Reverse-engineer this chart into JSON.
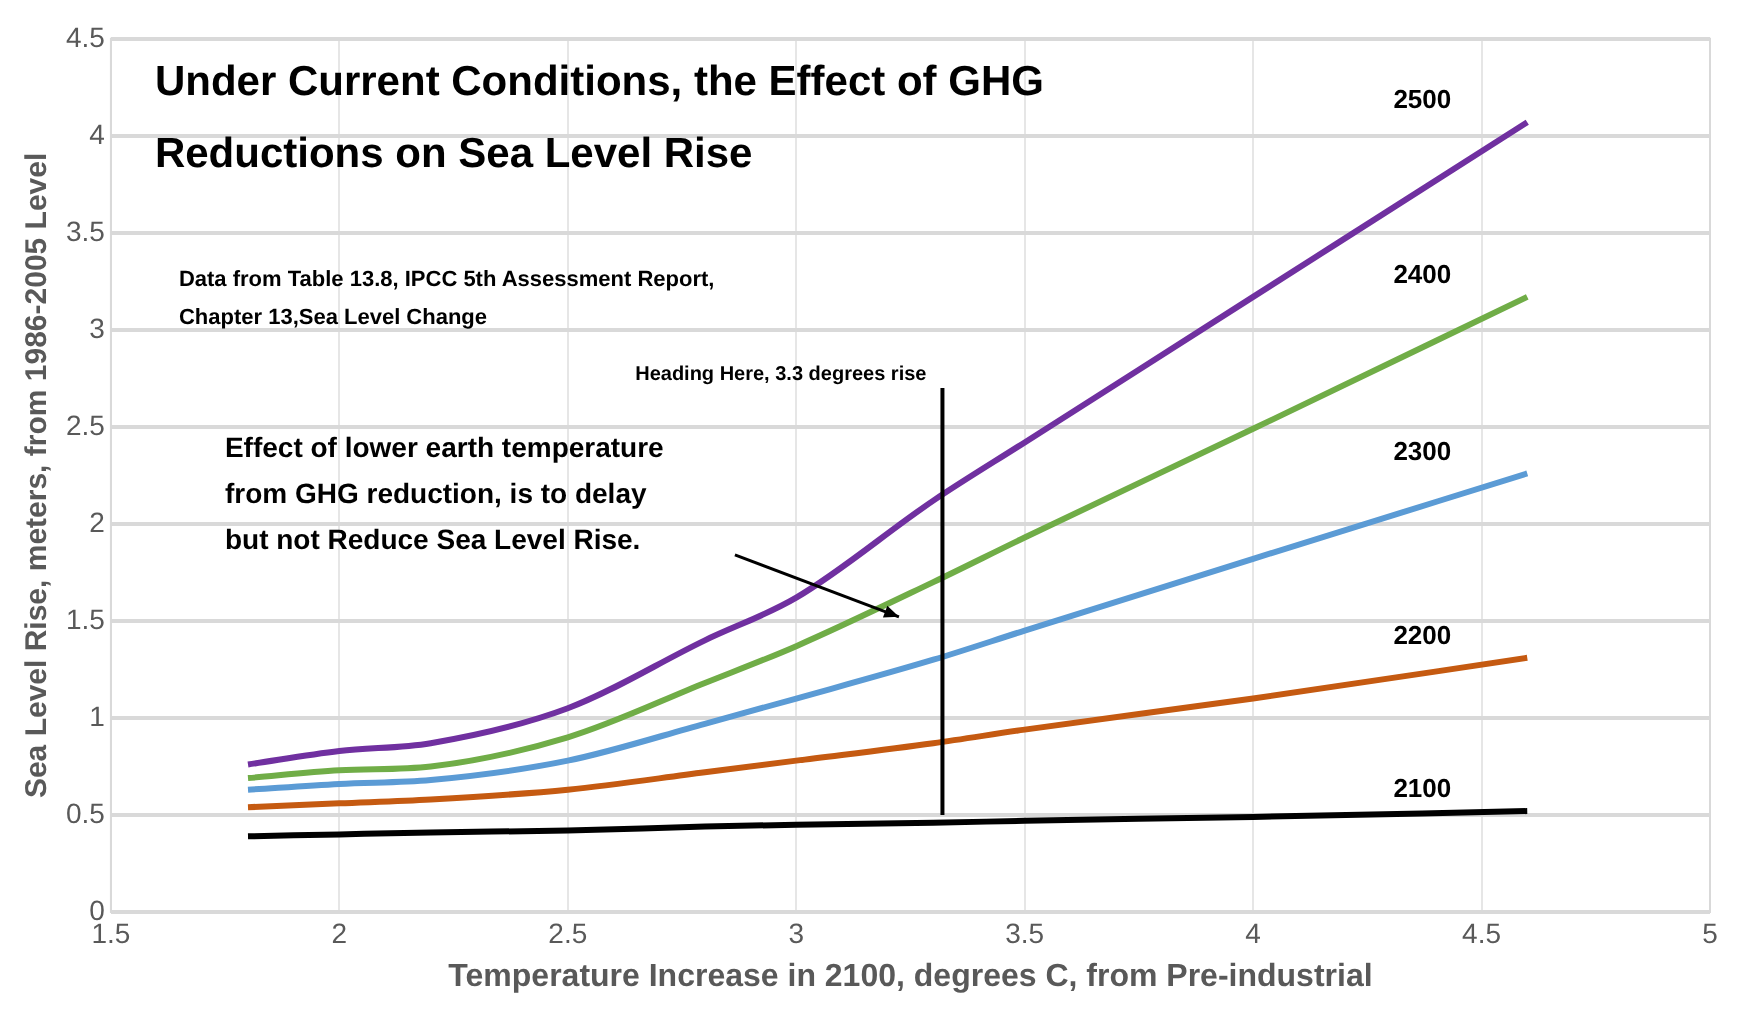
{
  "chart_data": {
    "type": "line",
    "title": "Under Current Conditions, the Effect of GHG Reductions on Sea Level Rise",
    "xlabel": "Temperature Increase in 2100, degrees C, from Pre-industrial",
    "ylabel": "Sea Level Rise, meters, from 1986-2005 Level",
    "x": [
      1.8,
      2,
      2.2,
      2.5,
      2.8,
      3,
      3.3,
      3.5,
      4,
      4.6
    ],
    "series": [
      {
        "name": "2500",
        "color": "#7030a0",
        "values": [
          0.76,
          0.83,
          0.87,
          1.05,
          1.4,
          1.62,
          2.12,
          2.42,
          3.17,
          4.07
        ]
      },
      {
        "name": "2400",
        "color": "#70ad47",
        "values": [
          0.69,
          0.73,
          0.75,
          0.9,
          1.18,
          1.37,
          1.7,
          1.93,
          2.49,
          3.17
        ]
      },
      {
        "name": "2300",
        "color": "#5b9bd5",
        "values": [
          0.63,
          0.66,
          0.68,
          0.78,
          0.97,
          1.1,
          1.3,
          1.45,
          1.82,
          2.26
        ]
      },
      {
        "name": "2200",
        "color": "#c55a11",
        "values": [
          0.54,
          0.56,
          0.58,
          0.63,
          0.72,
          0.78,
          0.87,
          0.94,
          1.1,
          1.31
        ]
      },
      {
        "name": "2100",
        "color": "#000000",
        "values": [
          0.39,
          0.4,
          0.41,
          0.42,
          0.44,
          0.45,
          0.46,
          0.47,
          0.49,
          0.52
        ]
      }
    ],
    "xlim": [
      1.5,
      5
    ],
    "xticks": [
      1.5,
      2,
      2.5,
      3,
      3.5,
      4,
      4.5,
      5
    ],
    "ylim": [
      0,
      4.5
    ],
    "yticks": [
      0,
      0.5,
      1,
      1.5,
      2,
      2.5,
      3,
      3.5,
      4,
      4.5
    ],
    "ref_lines": [
      {
        "axis": "x",
        "value": 3.32,
        "label": "Heading Here, 3.3 degrees rise",
        "color": "#000000"
      }
    ],
    "annotations": [
      "Data from Table 13.8, IPCC 5th Assessment Report, Chapter 13,Sea Level Change",
      "Effect of lower earth temperature from GHG reduction, is to delay but not Reduce Sea Level Rise."
    ],
    "grid": true,
    "legend": false,
    "marker": "none",
    "line_style": "solid"
  }
}
